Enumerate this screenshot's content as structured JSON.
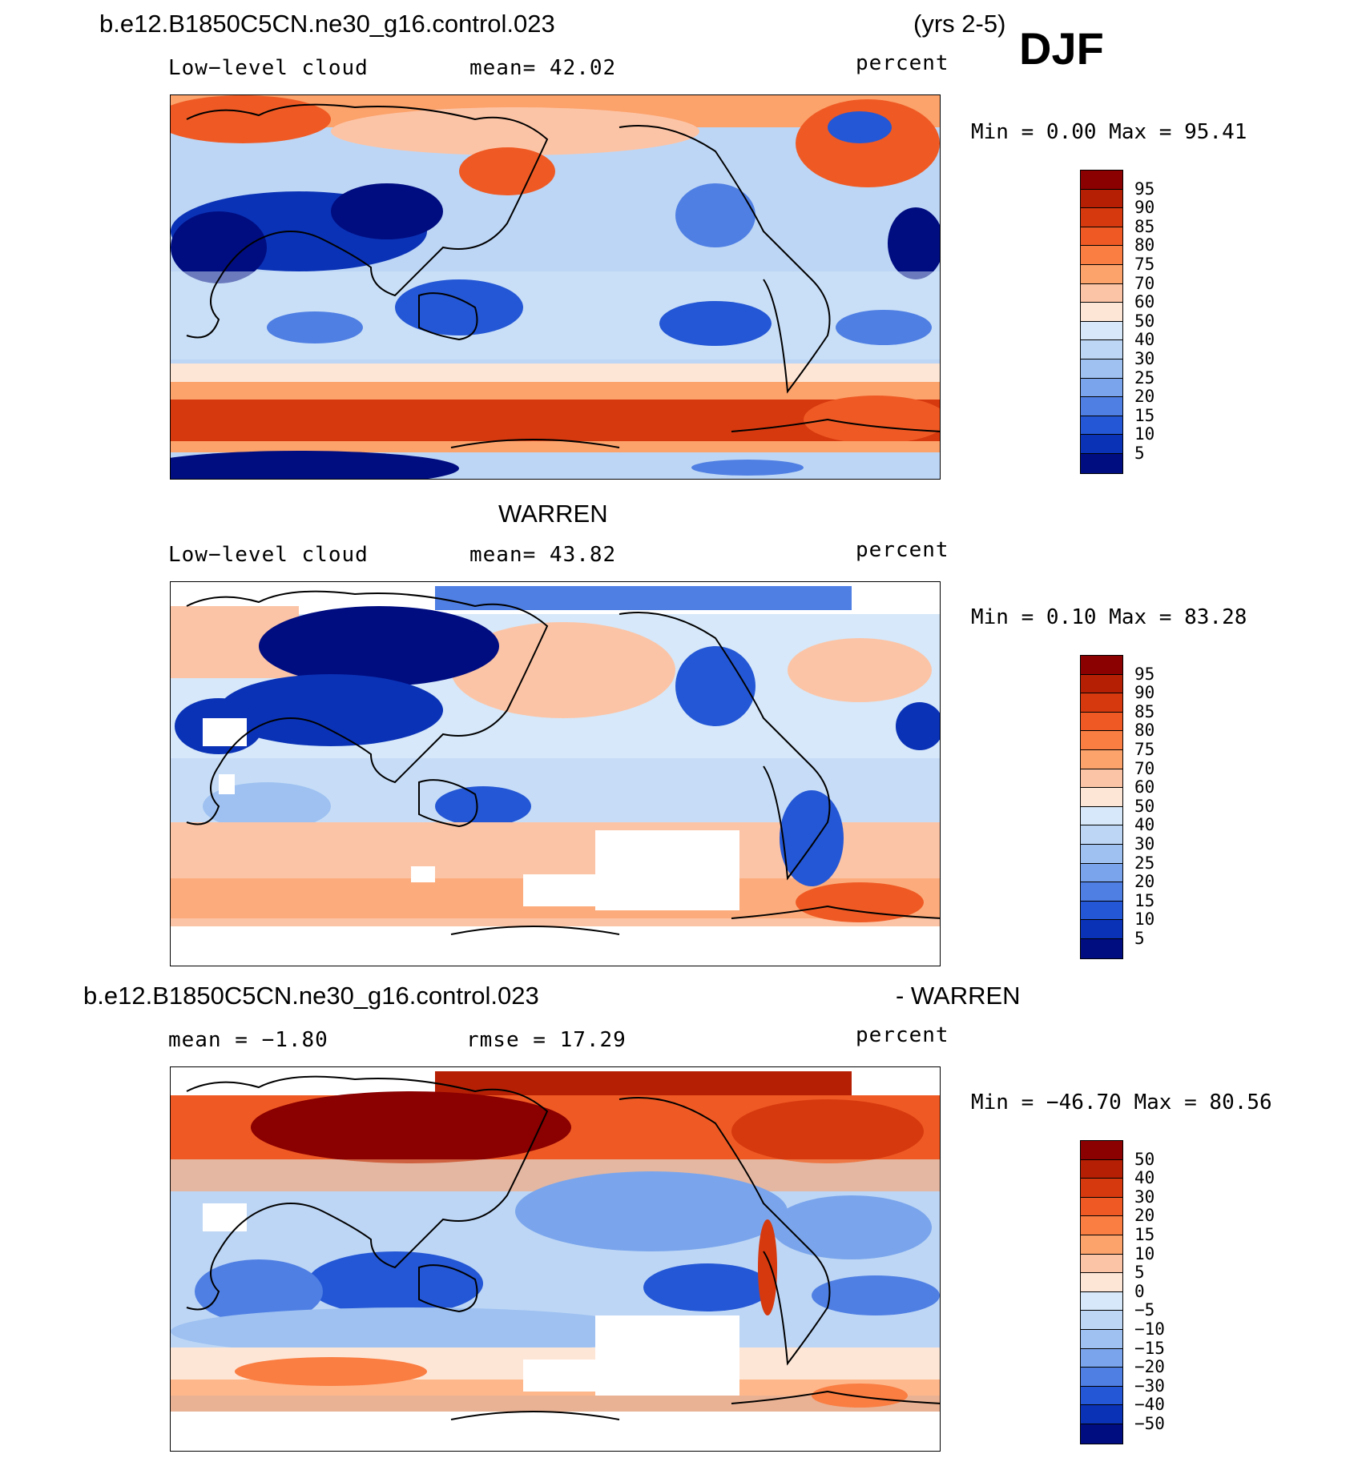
{
  "header": {
    "case_name": "b.e12.B1850C5CN.ne30_g16.control.023",
    "years": "(yrs 2-5)",
    "season": "DJF"
  },
  "panels": [
    {
      "title": "",
      "variable": "Low−level cloud",
      "stat": "mean=   42.02",
      "units": "percent",
      "minmax": "Min =    0.00 Max =   95.41",
      "colorbar": {
        "labels": [
          "95",
          "90",
          "85",
          "80",
          "75",
          "70",
          "60",
          "50",
          "40",
          "30",
          "25",
          "20",
          "15",
          "10",
          "5"
        ],
        "colors": [
          "#8b0000",
          "#b52005",
          "#d6390e",
          "#ef5a24",
          "#fa7d42",
          "#fca26b",
          "#fcc4a6",
          "#fde6d6",
          "#d6e8f9",
          "#bdd6f5",
          "#9ec1f1",
          "#7aa5ec",
          "#4f7fe3",
          "#2457d5",
          "#0a32b6",
          "#000d80"
        ]
      }
    },
    {
      "title": "WARREN",
      "variable": "Low−level cloud",
      "stat": "mean=   43.82",
      "units": "percent",
      "minmax": "Min =    0.10 Max =   83.28",
      "colorbar": {
        "labels": [
          "95",
          "90",
          "85",
          "80",
          "75",
          "70",
          "60",
          "50",
          "40",
          "30",
          "25",
          "20",
          "15",
          "10",
          "5"
        ],
        "colors": [
          "#8b0000",
          "#b52005",
          "#d6390e",
          "#ef5a24",
          "#fa7d42",
          "#fca26b",
          "#fcc4a6",
          "#fde6d6",
          "#d6e8f9",
          "#bdd6f5",
          "#9ec1f1",
          "#7aa5ec",
          "#4f7fe3",
          "#2457d5",
          "#0a32b6",
          "#000d80"
        ]
      }
    },
    {
      "title_left": "b.e12.B1850C5CN.ne30_g16.control.023",
      "title_right": "- WARREN",
      "stat_left": "mean =   −1.80",
      "stat_right": "rmse =   17.29",
      "units": "percent",
      "minmax": "Min = −46.70 Max =   80.56",
      "colorbar": {
        "labels": [
          "50",
          "40",
          "30",
          "20",
          "15",
          "10",
          "5",
          "0",
          "−5",
          "−10",
          "−15",
          "−20",
          "−30",
          "−40",
          "−50"
        ],
        "colors": [
          "#8b0000",
          "#b52005",
          "#d6390e",
          "#ef5a24",
          "#fa7d42",
          "#fca26b",
          "#fcc4a6",
          "#fde6d6",
          "#d6e8f9",
          "#bdd6f5",
          "#9ec1f1",
          "#7aa5ec",
          "#4f7fe3",
          "#2457d5",
          "#0a32b6",
          "#000d80"
        ]
      }
    }
  ]
}
